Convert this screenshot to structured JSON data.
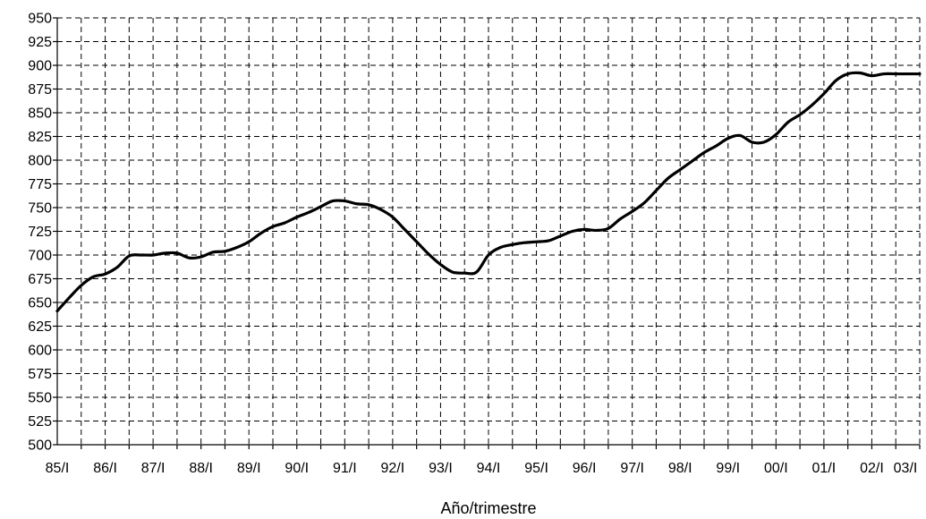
{
  "chart_data": {
    "type": "line",
    "title": "",
    "xlabel": "Año/trimestre",
    "ylabel": "",
    "ylim": [
      500,
      950
    ],
    "y_ticks": [
      500,
      525,
      550,
      575,
      600,
      625,
      650,
      675,
      700,
      725,
      750,
      775,
      800,
      825,
      850,
      875,
      900,
      925,
      950
    ],
    "x_tick_labels": [
      "85/I",
      "86/I",
      "87/I",
      "88/I",
      "89/I",
      "90/I",
      "91/I",
      "92/I",
      "93/I",
      "94/I",
      "95/I",
      "96/I",
      "97/I",
      "98/I",
      "99/I",
      "00/I",
      "01/I",
      "02/I",
      "03/I"
    ],
    "grid": true,
    "legend": "none",
    "series": [
      {
        "color": "#000000",
        "x": [
          "85/I",
          "85/II",
          "85/III",
          "85/IV",
          "86/I",
          "86/II",
          "86/III",
          "86/IV",
          "87/I",
          "87/II",
          "87/III",
          "87/IV",
          "88/I",
          "88/II",
          "88/III",
          "88/IV",
          "89/I",
          "89/II",
          "89/III",
          "89/IV",
          "90/I",
          "90/II",
          "90/III",
          "90/IV",
          "91/I",
          "91/II",
          "91/III",
          "91/IV",
          "92/I",
          "92/II",
          "92/III",
          "92/IV",
          "93/I",
          "93/II",
          "93/III",
          "93/IV",
          "94/I",
          "94/II",
          "94/III",
          "94/IV",
          "95/I",
          "95/II",
          "95/III",
          "95/IV",
          "96/I",
          "96/II",
          "96/III",
          "96/IV",
          "97/I",
          "97/II",
          "97/III",
          "97/IV",
          "98/I",
          "98/II",
          "98/III",
          "98/IV",
          "99/I",
          "99/II",
          "99/III",
          "99/IV",
          "00/I",
          "00/II",
          "00/III",
          "00/IV",
          "01/I",
          "01/II",
          "01/III",
          "01/IV",
          "02/I",
          "02/II",
          "02/III",
          "02/IV",
          "03/I"
        ],
        "values": [
          641,
          655,
          668,
          677,
          680,
          687,
          699,
          700,
          700,
          702,
          702,
          697,
          698,
          703,
          704,
          708,
          714,
          723,
          730,
          734,
          740,
          745,
          751,
          757,
          757,
          754,
          753,
          748,
          740,
          727,
          714,
          701,
          690,
          682,
          681,
          682,
          700,
          708,
          711,
          713,
          714,
          715,
          720,
          725,
          727,
          726,
          728,
          738,
          746,
          755,
          768,
          781,
          790,
          799,
          808,
          815,
          823,
          826,
          819,
          819,
          827,
          840,
          848,
          858,
          870,
          884,
          891,
          892,
          889,
          891,
          891,
          891,
          891
        ]
      }
    ]
  }
}
